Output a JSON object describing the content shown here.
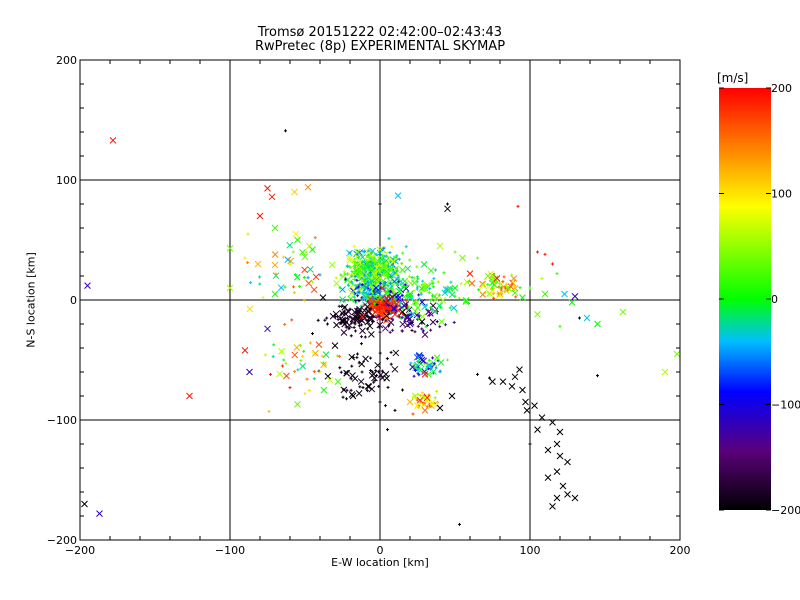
{
  "chart_data": {
    "type": "scatter",
    "title": "Tromsø 20151222 02:42:00–02:43:43",
    "subtitle": "RwPretec (8p) EXPERIMENTAL SKYMAP",
    "xlabel": "E-W location [km]",
    "ylabel": "N-S location [km]",
    "xlim": [
      -200,
      200
    ],
    "ylim": [
      -200,
      200
    ],
    "xticks": [
      -200,
      -100,
      0,
      100,
      200
    ],
    "yticks": [
      -200,
      -100,
      0,
      100,
      200
    ],
    "xtick_labels": [
      "−200",
      "−100",
      "0",
      "100",
      "200"
    ],
    "ytick_labels": [
      "−200",
      "−100",
      "0",
      "100",
      "200"
    ],
    "grid": true,
    "colorbar": {
      "label": "[m/s]",
      "range": [
        -200,
        200
      ],
      "ticks": [
        200,
        100,
        0,
        -100,
        -200
      ],
      "tick_labels": [
        "200",
        "100",
        "0",
        "−100",
        "−200"
      ],
      "colormap": [
        "#000000",
        "#5a007a",
        "#0000ff",
        "#00bfff",
        "#00ff00",
        "#ffff00",
        "#ff8000",
        "#ff0000"
      ]
    },
    "markers": [
      {
        "x": -178,
        "y": 133,
        "v": 190,
        "m": "x"
      },
      {
        "x": -195,
        "y": 12,
        "v": -120,
        "m": "x"
      },
      {
        "x": -197,
        "y": -170,
        "v": -200,
        "m": "x"
      },
      {
        "x": -187,
        "y": -178,
        "v": -120,
        "m": "x"
      },
      {
        "x": -127,
        "y": -80,
        "v": 190,
        "m": "x"
      },
      {
        "x": -75,
        "y": 93,
        "v": 190,
        "m": "x"
      },
      {
        "x": -72,
        "y": 86,
        "v": 190,
        "m": "x"
      },
      {
        "x": -80,
        "y": 70,
        "v": 190,
        "m": "x"
      },
      {
        "x": -57,
        "y": 90,
        "v": 110,
        "m": "x"
      },
      {
        "x": -48,
        "y": 94,
        "v": 140,
        "m": "x"
      },
      {
        "x": -63,
        "y": 141,
        "v": -200,
        "m": "+"
      },
      {
        "x": -100,
        "y": 43,
        "v": 40,
        "m": "x"
      },
      {
        "x": -100,
        "y": 10,
        "v": 60,
        "m": "x"
      },
      {
        "x": -90,
        "y": 35,
        "v": 100,
        "m": "+"
      },
      {
        "x": -88,
        "y": 55,
        "v": 60,
        "m": "+"
      },
      {
        "x": -70,
        "y": 60,
        "v": 20,
        "m": "x"
      },
      {
        "x": -55,
        "y": 50,
        "v": 10,
        "m": "x"
      },
      {
        "x": -50,
        "y": 36,
        "v": 30,
        "m": "x"
      },
      {
        "x": -45,
        "y": 42,
        "v": 0,
        "m": "x"
      },
      {
        "x": -60,
        "y": 30,
        "v": 80,
        "m": "+"
      },
      {
        "x": -70,
        "y": 5,
        "v": 10,
        "m": "x"
      },
      {
        "x": -75,
        "y": -24,
        "v": -120,
        "m": "x"
      },
      {
        "x": -90,
        "y": -42,
        "v": 190,
        "m": "x"
      },
      {
        "x": -87,
        "y": -60,
        "v": -120,
        "m": "x"
      },
      {
        "x": -73,
        "y": -62,
        "v": 190,
        "m": "+"
      },
      {
        "x": -65,
        "y": -55,
        "v": 180,
        "m": "+"
      },
      {
        "x": -60,
        "y": -73,
        "v": 190,
        "m": "+"
      },
      {
        "x": -55,
        "y": -87,
        "v": 30,
        "m": "x"
      },
      {
        "x": -50,
        "y": -78,
        "v": 100,
        "m": "+"
      },
      {
        "x": -40,
        "y": -60,
        "v": 100,
        "m": "+"
      },
      {
        "x": -28,
        "y": -68,
        "v": 20,
        "m": "x"
      },
      {
        "x": -53,
        "y": -38,
        "v": 40,
        "m": "+"
      },
      {
        "x": -38,
        "y": 2,
        "v": -200,
        "m": "x"
      },
      {
        "x": -15,
        "y": 40,
        "v": 40,
        "m": "x"
      },
      {
        "x": -10,
        "y": 28,
        "v": 20,
        "m": "x"
      },
      {
        "x": -5,
        "y": 35,
        "v": 40,
        "m": "x"
      },
      {
        "x": 0,
        "y": 42,
        "v": 60,
        "m": "x"
      },
      {
        "x": 5,
        "y": 22,
        "v": 30,
        "m": "x"
      },
      {
        "x": -20,
        "y": 15,
        "v": 30,
        "m": "x"
      },
      {
        "x": -8,
        "y": 8,
        "v": -40,
        "m": "x"
      },
      {
        "x": 0,
        "y": 2,
        "v": 10,
        "m": "x"
      },
      {
        "x": 3,
        "y": -3,
        "v": 190,
        "m": "x"
      },
      {
        "x": 6,
        "y": -8,
        "v": 190,
        "m": "x"
      },
      {
        "x": -3,
        "y": -10,
        "v": 190,
        "m": "x"
      },
      {
        "x": -12,
        "y": -14,
        "v": 190,
        "m": "x"
      },
      {
        "x": 10,
        "y": -12,
        "v": 180,
        "m": "x"
      },
      {
        "x": -25,
        "y": -18,
        "v": -200,
        "m": "x"
      },
      {
        "x": -35,
        "y": -20,
        "v": -200,
        "m": "+"
      },
      {
        "x": -45,
        "y": -28,
        "v": -200,
        "m": "+"
      },
      {
        "x": -30,
        "y": -38,
        "v": -200,
        "m": "x"
      },
      {
        "x": -15,
        "y": -45,
        "v": -200,
        "m": "+"
      },
      {
        "x": -5,
        "y": -60,
        "v": -200,
        "m": "+"
      },
      {
        "x": -8,
        "y": -72,
        "v": -200,
        "m": "x"
      },
      {
        "x": 0,
        "y": -85,
        "v": -200,
        "m": "+"
      },
      {
        "x": -18,
        "y": -80,
        "v": -200,
        "m": "x"
      },
      {
        "x": 15,
        "y": -75,
        "v": -200,
        "m": "+"
      },
      {
        "x": 10,
        "y": -92,
        "v": -200,
        "m": "+"
      },
      {
        "x": 5,
        "y": -108,
        "v": -200,
        "m": "+"
      },
      {
        "x": 20,
        "y": -85,
        "v": 120,
        "m": "x"
      },
      {
        "x": 25,
        "y": -88,
        "v": 100,
        "m": "x"
      },
      {
        "x": 30,
        "y": -92,
        "v": 150,
        "m": "x"
      },
      {
        "x": 35,
        "y": -85,
        "v": 80,
        "m": "x"
      },
      {
        "x": 40,
        "y": -90,
        "v": -200,
        "m": "x"
      },
      {
        "x": 22,
        "y": -95,
        "v": 170,
        "m": "+"
      },
      {
        "x": 28,
        "y": -50,
        "v": -120,
        "m": "x"
      },
      {
        "x": 33,
        "y": -55,
        "v": -40,
        "m": "x"
      },
      {
        "x": 38,
        "y": -48,
        "v": 20,
        "m": "x"
      },
      {
        "x": 30,
        "y": -62,
        "v": 190,
        "m": "x"
      },
      {
        "x": 40,
        "y": -60,
        "v": -40,
        "m": "+"
      },
      {
        "x": 25,
        "y": -58,
        "v": -40,
        "m": "+"
      },
      {
        "x": 45,
        "y": -50,
        "v": 40,
        "m": "+"
      },
      {
        "x": 48,
        "y": -80,
        "v": -200,
        "m": "x"
      },
      {
        "x": 15,
        "y": -10,
        "v": -200,
        "m": "x"
      },
      {
        "x": 22,
        "y": -12,
        "v": -40,
        "m": "x"
      },
      {
        "x": 28,
        "y": -18,
        "v": -200,
        "m": "x"
      },
      {
        "x": 20,
        "y": 5,
        "v": 0,
        "m": "x"
      },
      {
        "x": 30,
        "y": 10,
        "v": 40,
        "m": "x"
      },
      {
        "x": 15,
        "y": 25,
        "v": 20,
        "m": "x"
      },
      {
        "x": 12,
        "y": 87,
        "v": -40,
        "m": "x"
      },
      {
        "x": 0,
        "y": 80,
        "v": -200,
        "m": "+"
      },
      {
        "x": 45,
        "y": 80,
        "v": -200,
        "m": "+"
      },
      {
        "x": 45,
        "y": 76,
        "v": -200,
        "m": "x"
      },
      {
        "x": 40,
        "y": 45,
        "v": 60,
        "m": "x"
      },
      {
        "x": 50,
        "y": 40,
        "v": 40,
        "m": "+"
      },
      {
        "x": 55,
        "y": 35,
        "v": 40,
        "m": "x"
      },
      {
        "x": 60,
        "y": 22,
        "v": 190,
        "m": "x"
      },
      {
        "x": 65,
        "y": 35,
        "v": 40,
        "m": "+"
      },
      {
        "x": 58,
        "y": 15,
        "v": 60,
        "m": "x"
      },
      {
        "x": 50,
        "y": 10,
        "v": 0,
        "m": "x"
      },
      {
        "x": 72,
        "y": 20,
        "v": 40,
        "m": "x"
      },
      {
        "x": 78,
        "y": 18,
        "v": 190,
        "m": "x"
      },
      {
        "x": 75,
        "y": 8,
        "v": 100,
        "m": "x"
      },
      {
        "x": 80,
        "y": 5,
        "v": 120,
        "m": "x"
      },
      {
        "x": 85,
        "y": 10,
        "v": 40,
        "m": "x"
      },
      {
        "x": 90,
        "y": 6,
        "v": 20,
        "m": "x"
      },
      {
        "x": 95,
        "y": 2,
        "v": 0,
        "m": "x"
      },
      {
        "x": 100,
        "y": 10,
        "v": 20,
        "m": "+"
      },
      {
        "x": 92,
        "y": 78,
        "v": 190,
        "m": "+"
      },
      {
        "x": 105,
        "y": 40,
        "v": 190,
        "m": "+"
      },
      {
        "x": 110,
        "y": 38,
        "v": 190,
        "m": "+"
      },
      {
        "x": 115,
        "y": 30,
        "v": 190,
        "m": "+"
      },
      {
        "x": 118,
        "y": 22,
        "v": 20,
        "m": "+"
      },
      {
        "x": 108,
        "y": 18,
        "v": 60,
        "m": "+"
      },
      {
        "x": 105,
        "y": -12,
        "v": 40,
        "m": "x"
      },
      {
        "x": 110,
        "y": 5,
        "v": 20,
        "m": "x"
      },
      {
        "x": 123,
        "y": 5,
        "v": -40,
        "m": "x"
      },
      {
        "x": 130,
        "y": 3,
        "v": -120,
        "m": "x"
      },
      {
        "x": 128,
        "y": -2,
        "v": 0,
        "m": "x"
      },
      {
        "x": 138,
        "y": -15,
        "v": -40,
        "m": "x"
      },
      {
        "x": 133,
        "y": -15,
        "v": -200,
        "m": "+"
      },
      {
        "x": 145,
        "y": -20,
        "v": 0,
        "m": "x"
      },
      {
        "x": 162,
        "y": -10,
        "v": 40,
        "m": "x"
      },
      {
        "x": 145,
        "y": -63,
        "v": -200,
        "m": "+"
      },
      {
        "x": 190,
        "y": -60,
        "v": 60,
        "m": "x"
      },
      {
        "x": 198,
        "y": -45,
        "v": 40,
        "m": "x"
      },
      {
        "x": 120,
        "y": -22,
        "v": 20,
        "m": "+"
      },
      {
        "x": 73,
        "y": -65,
        "v": -200,
        "m": "+"
      },
      {
        "x": 75,
        "y": -68,
        "v": -200,
        "m": "x"
      },
      {
        "x": 82,
        "y": -68,
        "v": -200,
        "m": "x"
      },
      {
        "x": 88,
        "y": -72,
        "v": -200,
        "m": "x"
      },
      {
        "x": 90,
        "y": -64,
        "v": -200,
        "m": "x"
      },
      {
        "x": 93,
        "y": -58,
        "v": -200,
        "m": "x"
      },
      {
        "x": 95,
        "y": -75,
        "v": -200,
        "m": "x"
      },
      {
        "x": 97,
        "y": -85,
        "v": -200,
        "m": "x"
      },
      {
        "x": 98,
        "y": -92,
        "v": -200,
        "m": "x"
      },
      {
        "x": 103,
        "y": -88,
        "v": -200,
        "m": "x"
      },
      {
        "x": 108,
        "y": -98,
        "v": -200,
        "m": "x"
      },
      {
        "x": 105,
        "y": -108,
        "v": -200,
        "m": "x"
      },
      {
        "x": 115,
        "y": -102,
        "v": -200,
        "m": "x"
      },
      {
        "x": 120,
        "y": -110,
        "v": -200,
        "m": "x"
      },
      {
        "x": 118,
        "y": -120,
        "v": -200,
        "m": "x"
      },
      {
        "x": 112,
        "y": -125,
        "v": -200,
        "m": "x"
      },
      {
        "x": 120,
        "y": -130,
        "v": -200,
        "m": "x"
      },
      {
        "x": 125,
        "y": -135,
        "v": -200,
        "m": "x"
      },
      {
        "x": 118,
        "y": -143,
        "v": -200,
        "m": "x"
      },
      {
        "x": 112,
        "y": -148,
        "v": -200,
        "m": "x"
      },
      {
        "x": 122,
        "y": -155,
        "v": -200,
        "m": "x"
      },
      {
        "x": 125,
        "y": -162,
        "v": -200,
        "m": "x"
      },
      {
        "x": 118,
        "y": -165,
        "v": -200,
        "m": "x"
      },
      {
        "x": 130,
        "y": -165,
        "v": -200,
        "m": "x"
      },
      {
        "x": 115,
        "y": -172,
        "v": -200,
        "m": "x"
      },
      {
        "x": 53,
        "y": -187,
        "v": -200,
        "m": "+"
      },
      {
        "x": 100,
        "y": -120,
        "v": -200,
        "m": "+"
      },
      {
        "x": 65,
        "y": -62,
        "v": -200,
        "m": "+"
      }
    ],
    "dense_clusters": [
      {
        "cx": -5,
        "cy": 25,
        "sx": 16,
        "sy": 14,
        "n": 340,
        "vmin": -60,
        "vmax": 80,
        "seed": 7
      },
      {
        "cx": 0,
        "cy": 5,
        "sx": 18,
        "sy": 12,
        "n": 180,
        "vmin": -140,
        "vmax": 60,
        "seed": 11
      },
      {
        "cx": 3,
        "cy": -6,
        "sx": 9,
        "sy": 8,
        "n": 130,
        "vmin": 160,
        "vmax": 200,
        "seed": 13
      },
      {
        "cx": -18,
        "cy": -15,
        "sx": 14,
        "sy": 10,
        "n": 110,
        "vmin": -200,
        "vmax": -170,
        "seed": 17
      },
      {
        "cx": 20,
        "cy": -15,
        "sx": 18,
        "sy": 12,
        "n": 70,
        "vmin": -200,
        "vmax": -100,
        "seed": 19
      },
      {
        "cx": 30,
        "cy": 2,
        "sx": 22,
        "sy": 15,
        "n": 90,
        "vmin": -40,
        "vmax": 60,
        "seed": 23
      },
      {
        "cx": 80,
        "cy": 10,
        "sx": 12,
        "sy": 8,
        "n": 60,
        "vmin": 0,
        "vmax": 180,
        "seed": 29
      },
      {
        "cx": 30,
        "cy": -85,
        "sx": 8,
        "sy": 6,
        "n": 40,
        "vmin": 40,
        "vmax": 190,
        "seed": 31
      },
      {
        "cx": 32,
        "cy": -55,
        "sx": 9,
        "sy": 7,
        "n": 45,
        "vmin": -130,
        "vmax": 60,
        "seed": 37
      },
      {
        "cx": -10,
        "cy": -60,
        "sx": 20,
        "sy": 20,
        "n": 60,
        "vmin": -200,
        "vmax": -180,
        "seed": 41
      },
      {
        "cx": -60,
        "cy": 20,
        "sx": 28,
        "sy": 25,
        "n": 40,
        "vmin": -60,
        "vmax": 190,
        "seed": 43
      },
      {
        "cx": -50,
        "cy": -55,
        "sx": 25,
        "sy": 20,
        "n": 35,
        "vmin": -60,
        "vmax": 190,
        "seed": 47
      }
    ]
  }
}
